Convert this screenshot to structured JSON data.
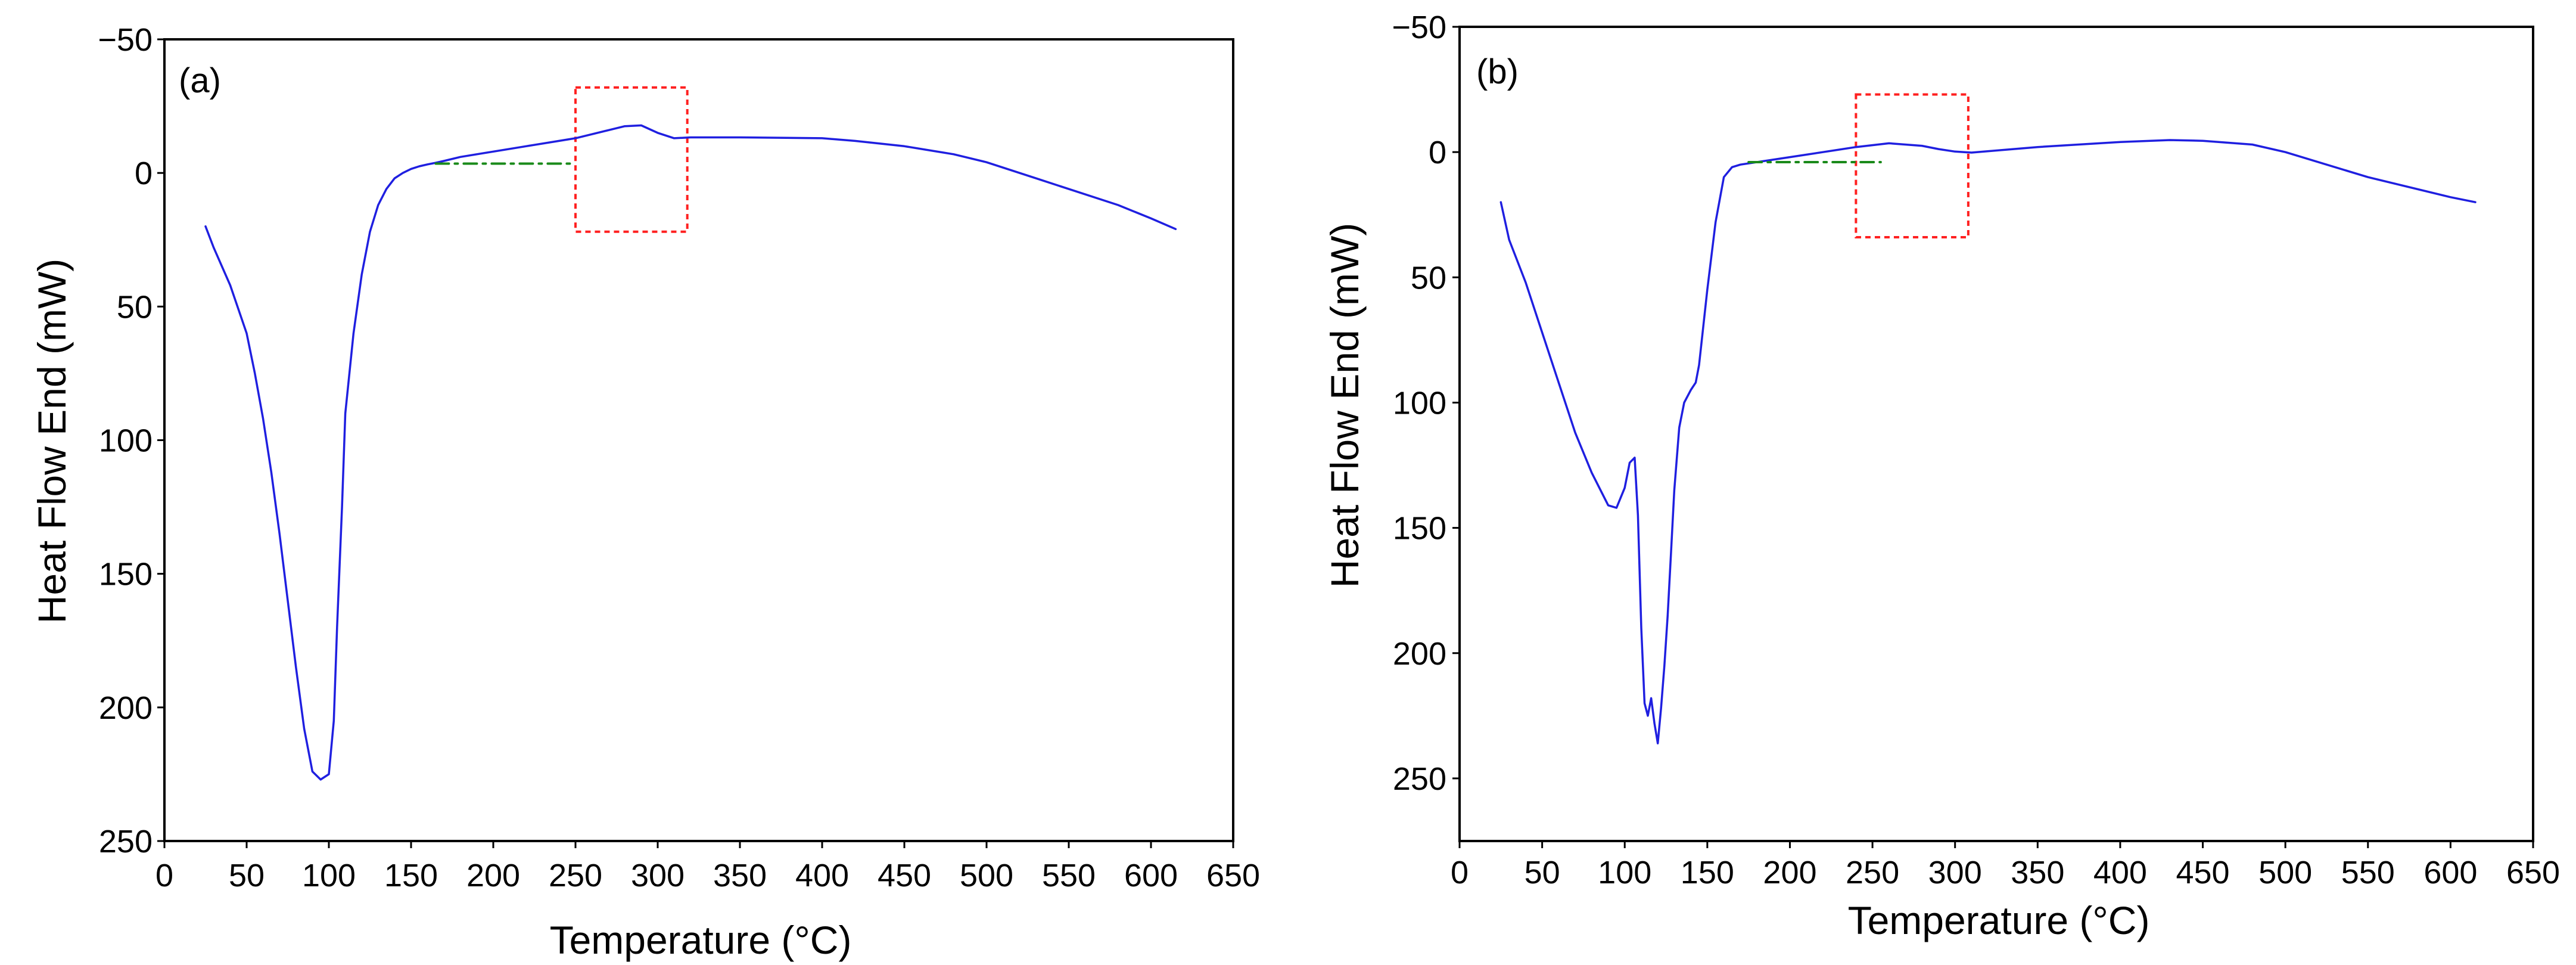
{
  "chart_data": [
    {
      "type": "line",
      "panel_label": "(a)",
      "xlabel": "Temperature (°C)",
      "ylabel": "Heat Flow End (mW)",
      "xlim": [
        0,
        650
      ],
      "ylim": [
        -50,
        250
      ],
      "y_inverted": true,
      "xticks": [
        0,
        50,
        100,
        150,
        200,
        250,
        300,
        350,
        400,
        450,
        500,
        550,
        600,
        650
      ],
      "yticks": [
        -50,
        0,
        50,
        100,
        150,
        200,
        250
      ],
      "ytick_labels": [
        "−50",
        "0",
        "50",
        "100",
        "150",
        "200",
        "250"
      ],
      "colors": {
        "curve": "#1f1fe0",
        "baseline": "#1a8a1a",
        "box": "#ff2020"
      },
      "series": [
        {
          "name": "DSC curve",
          "x": [
            25,
            30,
            40,
            50,
            55,
            60,
            65,
            70,
            75,
            80,
            85,
            90,
            95,
            100,
            103,
            105,
            108,
            110,
            115,
            120,
            125,
            130,
            135,
            140,
            145,
            150,
            155,
            160,
            165,
            170,
            180,
            200,
            220,
            240,
            250,
            260,
            270,
            280,
            290,
            300,
            310,
            320,
            350,
            400,
            420,
            450,
            480,
            500,
            530,
            550,
            580,
            600,
            615
          ],
          "y": [
            20,
            28,
            42,
            60,
            75,
            92,
            112,
            135,
            160,
            185,
            208,
            224,
            227,
            225,
            205,
            170,
            125,
            90,
            60,
            38,
            22,
            12,
            6,
            2,
            0,
            -1.5,
            -2.5,
            -3.2,
            -3.8,
            -4.5,
            -6,
            -8,
            -10,
            -12,
            -13,
            -14.5,
            -16,
            -17.5,
            -17.8,
            -15,
            -13,
            -13.3,
            -13.3,
            -13,
            -12,
            -10,
            -7,
            -4,
            2,
            6,
            12,
            17,
            21
          ]
        },
        {
          "name": "baseline",
          "style": "dash-dot",
          "x": [
            165,
            250
          ],
          "y": [
            -3.5,
            -3.5
          ]
        }
      ],
      "annotation_box": {
        "x": [
          250,
          318
        ],
        "y": [
          -32,
          22
        ]
      }
    },
    {
      "type": "line",
      "panel_label": "(b)",
      "xlabel": "Temperature (°C)",
      "ylabel": "Heat Flow End (mW)",
      "xlim": [
        0,
        650
      ],
      "ylim": [
        -50,
        275
      ],
      "y_inverted": true,
      "xticks": [
        0,
        50,
        100,
        150,
        200,
        250,
        300,
        350,
        400,
        450,
        500,
        550,
        600,
        650
      ],
      "yticks": [
        -50,
        0,
        50,
        100,
        150,
        200,
        250
      ],
      "ytick_labels": [
        "−50",
        "0",
        "50",
        "100",
        "150",
        "200",
        "250"
      ],
      "colors": {
        "curve": "#1f1fe0",
        "baseline": "#1a8a1a",
        "box": "#ff2020"
      },
      "series": [
        {
          "name": "DSC curve",
          "x": [
            25,
            30,
            40,
            50,
            60,
            70,
            80,
            90,
            95,
            100,
            103,
            106,
            108,
            110,
            112,
            114,
            116,
            118,
            120,
            122,
            124,
            126,
            128,
            130,
            133,
            136,
            140,
            143,
            145,
            150,
            155,
            160,
            165,
            170,
            180,
            200,
            220,
            240,
            260,
            280,
            290,
            300,
            310,
            350,
            400,
            430,
            450,
            480,
            500,
            550,
            600,
            615
          ],
          "y": [
            20,
            35,
            52,
            72,
            92,
            112,
            128,
            141,
            142,
            134,
            124,
            122,
            145,
            190,
            220,
            225,
            218,
            228,
            236,
            222,
            205,
            185,
            160,
            135,
            110,
            100,
            95,
            92,
            85,
            55,
            28,
            10,
            6,
            5,
            4,
            2,
            0,
            -2,
            -3.5,
            -2.5,
            -1.2,
            -0.2,
            0.2,
            -2,
            -4,
            -4.8,
            -4.5,
            -3,
            0,
            10,
            18,
            20
          ]
        },
        {
          "name": "baseline",
          "style": "dash-dot",
          "x": [
            175,
            255
          ],
          "y": [
            4,
            4
          ]
        }
      ],
      "annotation_box": {
        "x": [
          240,
          308
        ],
        "y": [
          -23,
          34
        ]
      }
    }
  ]
}
